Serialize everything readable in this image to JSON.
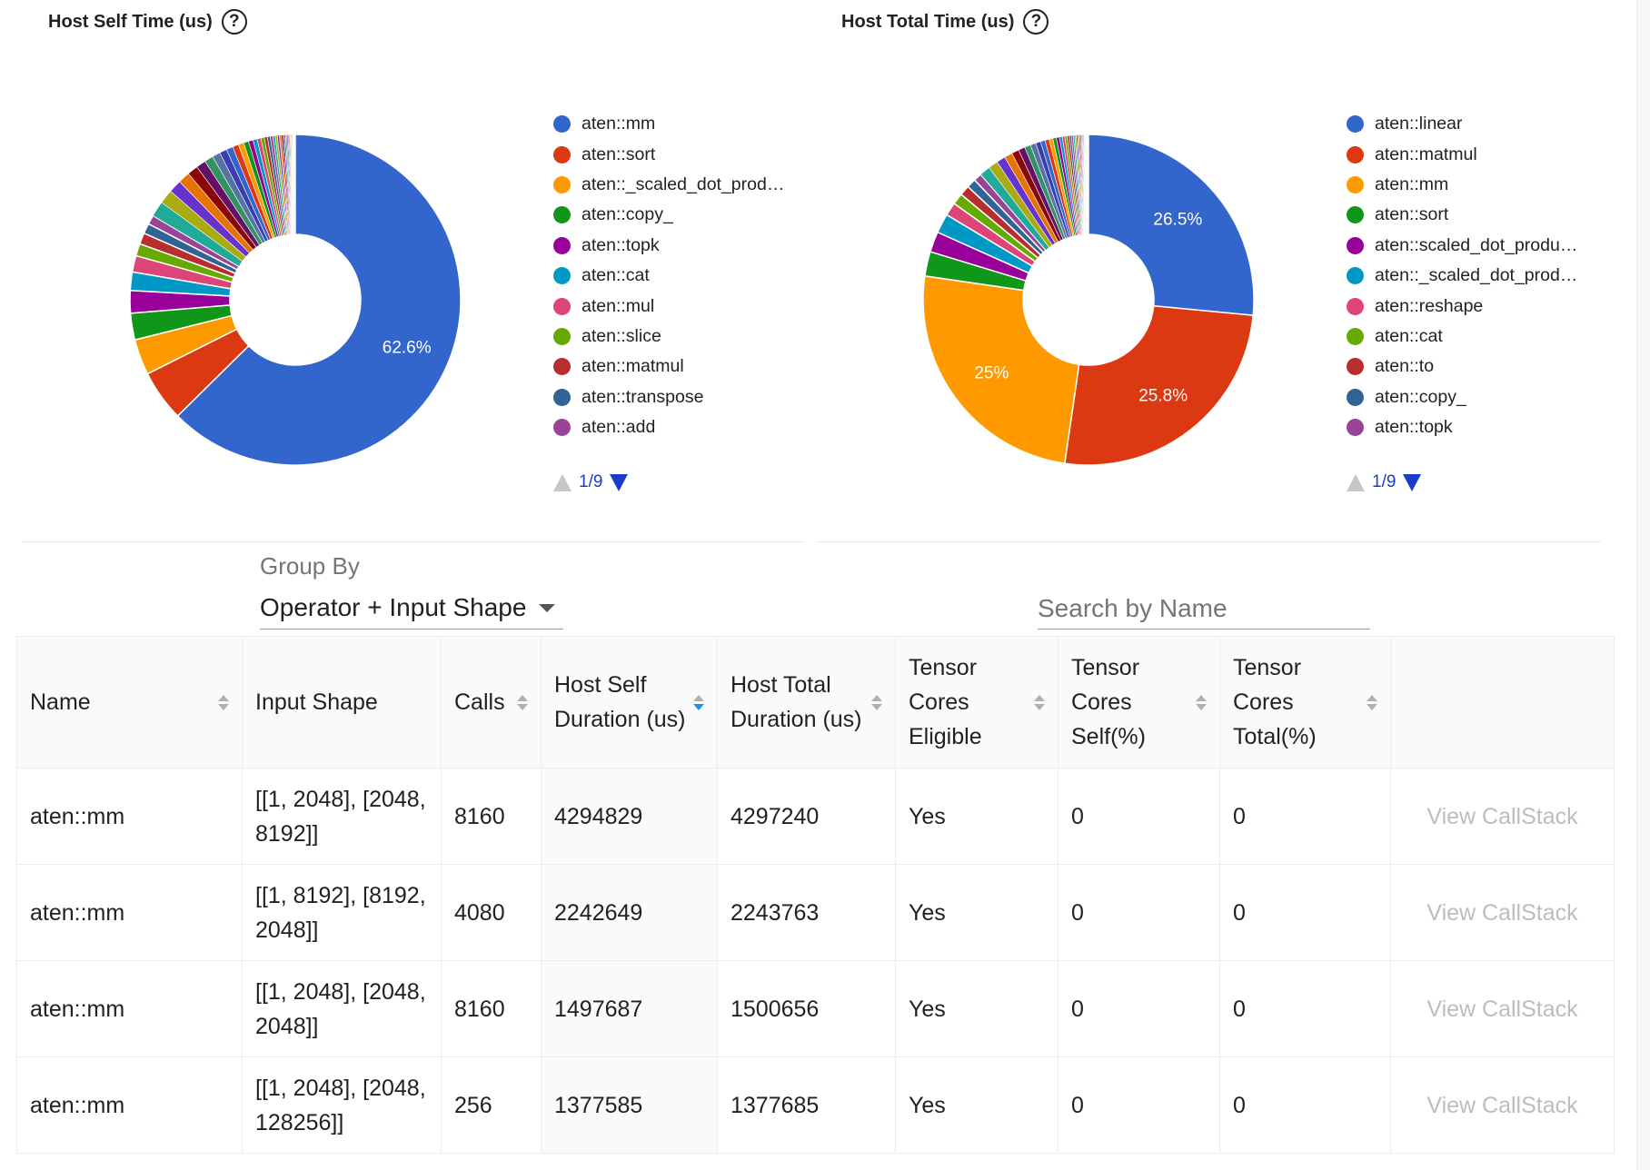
{
  "charts": [
    {
      "title": "Host Self Time (us)",
      "legend": [
        "aten::mm",
        "aten::sort",
        "aten::_scaled_dot_prod…",
        "aten::copy_",
        "aten::topk",
        "aten::cat",
        "aten::mul",
        "aten::slice",
        "aten::matmul",
        "aten::transpose",
        "aten::add"
      ],
      "pager": "1/9"
    },
    {
      "title": "Host Total Time (us)",
      "legend": [
        "aten::linear",
        "aten::matmul",
        "aten::mm",
        "aten::sort",
        "aten::scaled_dot_produ…",
        "aten::_scaled_dot_prod…",
        "aten::reshape",
        "aten::cat",
        "aten::to",
        "aten::copy_",
        "aten::topk"
      ],
      "pager": "1/9"
    }
  ],
  "chart_data": [
    {
      "type": "pie",
      "title": "Host Self Time (us)",
      "donut": true,
      "legend_position": "right",
      "slices": [
        {
          "label": "aten::mm",
          "value": 62.6,
          "display": "62.6%",
          "color": "#3366cc"
        },
        {
          "label": "aten::sort",
          "value": 5.0,
          "color": "#dc3912"
        },
        {
          "label": "aten::_scaled_dot_prod…",
          "value": 3.5,
          "color": "#ff9900"
        },
        {
          "label": "aten::copy_",
          "value": 2.6,
          "color": "#109618"
        },
        {
          "label": "aten::topk",
          "value": 2.2,
          "color": "#990099"
        },
        {
          "label": "aten::cat",
          "value": 1.8,
          "color": "#0099c6"
        },
        {
          "label": "aten::mul",
          "value": 1.6,
          "color": "#dd4477"
        },
        {
          "label": "aten::slice",
          "value": 1.2,
          "color": "#66aa00"
        },
        {
          "label": "aten::matmul",
          "value": 1.1,
          "color": "#b82e2e"
        },
        {
          "label": "aten::transpose",
          "value": 1.0,
          "color": "#316395"
        },
        {
          "label": "aten::add",
          "value": 0.9,
          "color": "#994499"
        }
      ]
    },
    {
      "type": "pie",
      "title": "Host Total Time (us)",
      "donut": true,
      "legend_position": "right",
      "slices": [
        {
          "label": "aten::linear",
          "value": 26.5,
          "display": "26.5%",
          "color": "#3366cc"
        },
        {
          "label": "aten::matmul",
          "value": 25.8,
          "display": "25.8%",
          "color": "#dc3912"
        },
        {
          "label": "aten::mm",
          "value": 25.0,
          "display": "25%",
          "color": "#ff9900"
        },
        {
          "label": "aten::sort",
          "value": 2.4,
          "color": "#109618"
        },
        {
          "label": "aten::scaled_dot_produ…",
          "value": 2.0,
          "color": "#990099"
        },
        {
          "label": "aten::_scaled_dot_prod…",
          "value": 1.9,
          "color": "#0099c6"
        },
        {
          "label": "aten::reshape",
          "value": 1.3,
          "color": "#dd4477"
        },
        {
          "label": "aten::cat",
          "value": 1.1,
          "color": "#66aa00"
        },
        {
          "label": "aten::to",
          "value": 1.0,
          "color": "#b82e2e"
        },
        {
          "label": "aten::copy_",
          "value": 0.9,
          "color": "#316395"
        },
        {
          "label": "aten::topk",
          "value": 0.8,
          "color": "#994499"
        }
      ]
    }
  ],
  "palette": [
    "#3366cc",
    "#dc3912",
    "#ff9900",
    "#109618",
    "#990099",
    "#0099c6",
    "#dd4477",
    "#66aa00",
    "#b82e2e",
    "#316395",
    "#994499",
    "#22aa99",
    "#aaaa11",
    "#6633cc",
    "#e67300",
    "#8b0707",
    "#651067",
    "#329262",
    "#5574a6",
    "#3b3eac"
  ],
  "group_by": {
    "label": "Group By",
    "value": "Operator + Input Shape"
  },
  "search": {
    "placeholder": "Search by Name"
  },
  "table": {
    "headers": [
      {
        "label": "Name",
        "sortable": true
      },
      {
        "label": "Input Shape",
        "sortable": false
      },
      {
        "label": "Calls",
        "sortable": true
      },
      {
        "label": "Host Self Duration (us)",
        "sortable": true,
        "active": true
      },
      {
        "label": "Host Total Duration (us)",
        "sortable": true
      },
      {
        "label": "Tensor Cores Eligible",
        "sortable": true
      },
      {
        "label": "Tensor Cores Self(%)",
        "sortable": true
      },
      {
        "label": "Tensor Cores Total(%)",
        "sortable": true
      },
      {
        "label": "",
        "sortable": false
      }
    ],
    "rows": [
      [
        "aten::mm",
        "[[1, 2048], [2048, 8192]]",
        "8160",
        "4294829",
        "4297240",
        "Yes",
        "0",
        "0",
        "View CallStack"
      ],
      [
        "aten::mm",
        "[[1, 8192], [8192, 2048]]",
        "4080",
        "2242649",
        "2243763",
        "Yes",
        "0",
        "0",
        "View CallStack"
      ],
      [
        "aten::mm",
        "[[1, 2048], [2048, 2048]]",
        "8160",
        "1497687",
        "1500656",
        "Yes",
        "0",
        "0",
        "View CallStack"
      ],
      [
        "aten::mm",
        "[[1, 2048], [2048, 128256]]",
        "256",
        "1377585",
        "1377685",
        "Yes",
        "0",
        "0",
        "View CallStack"
      ]
    ]
  }
}
